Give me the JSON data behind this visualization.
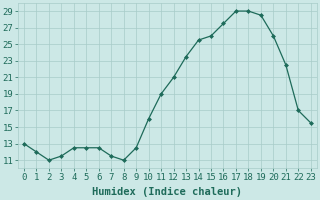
{
  "x": [
    0,
    1,
    2,
    3,
    4,
    5,
    6,
    7,
    8,
    9,
    10,
    11,
    12,
    13,
    14,
    15,
    16,
    17,
    18,
    19,
    20,
    21,
    22,
    23
  ],
  "y": [
    13,
    12,
    11,
    11.5,
    12.5,
    12.5,
    12.5,
    11.5,
    11,
    12.5,
    16,
    19,
    21,
    23.5,
    25.5,
    26,
    27.5,
    29,
    29,
    28.5,
    26,
    22.5,
    17,
    15.5
  ],
  "line_color": "#1e6b5a",
  "marker": "D",
  "marker_size": 2.0,
  "bg_color": "#cce8e6",
  "grid_color": "#a8ccc9",
  "xlabel": "Humidex (Indice chaleur)",
  "yticks": [
    11,
    13,
    15,
    17,
    19,
    21,
    23,
    25,
    27,
    29
  ],
  "xtick_labels": [
    "0",
    "1",
    "2",
    "3",
    "4",
    "5",
    "6",
    "7",
    "8",
    "9",
    "10",
    "11",
    "12",
    "13",
    "14",
    "15",
    "16",
    "17",
    "18",
    "19",
    "20",
    "21",
    "22",
    "23"
  ],
  "ylim": [
    10,
    30
  ],
  "xlim": [
    -0.5,
    23.5
  ],
  "axis_color": "#1e6b5a",
  "tick_fontsize": 6.5,
  "xlabel_fontsize": 7.5
}
